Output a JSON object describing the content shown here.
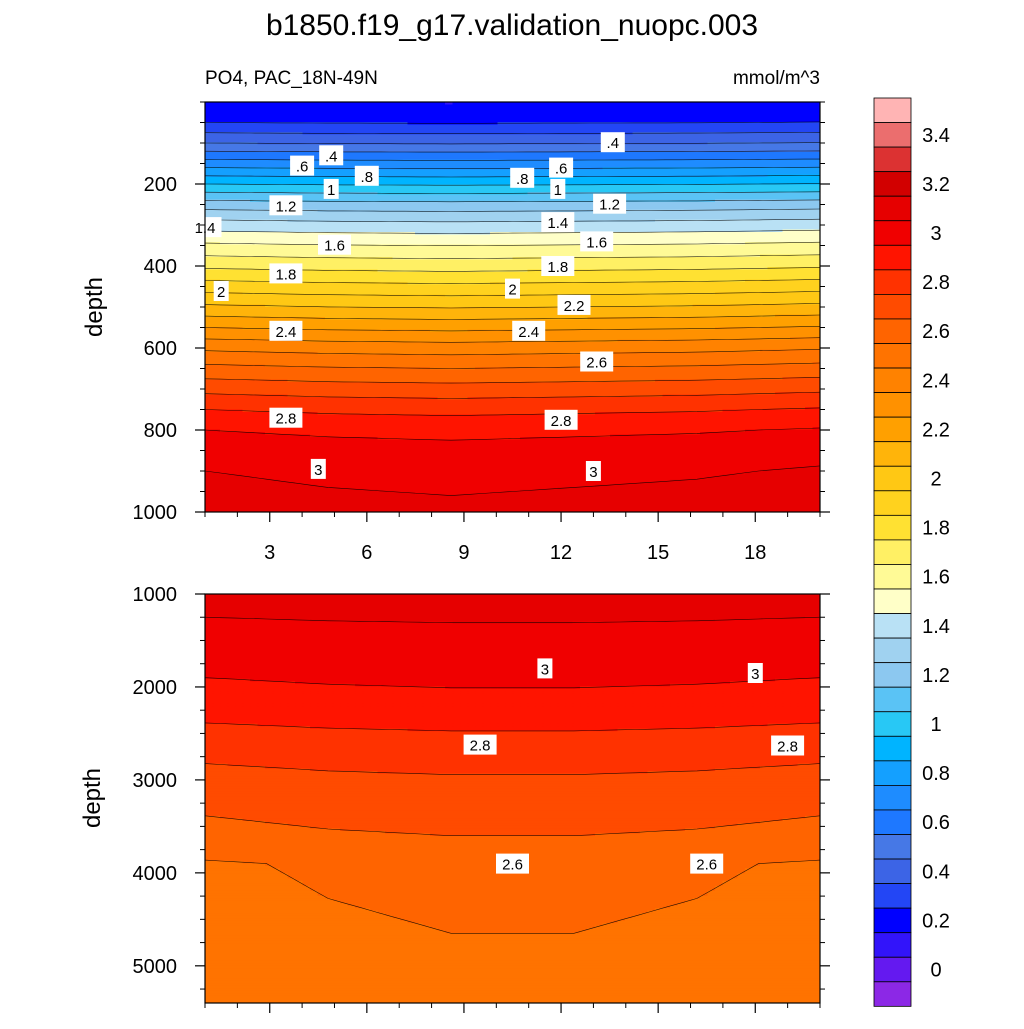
{
  "chart_data": {
    "type": "heatmap",
    "title": "b1850.f19_g17.validation_nuopc.003",
    "left_subtitle": "PO4, PAC_18N-49N",
    "right_subtitle": "mmol/m^3",
    "colorbar": {
      "levels": [
        -0.1,
        0,
        0.1,
        0.2,
        0.3,
        0.4,
        0.5,
        0.6,
        0.7,
        0.8,
        0.9,
        1.0,
        1.1,
        1.2,
        1.3,
        1.4,
        1.5,
        1.6,
        1.7,
        1.8,
        1.9,
        2.0,
        2.1,
        2.2,
        2.3,
        2.4,
        2.5,
        2.6,
        2.7,
        2.8,
        2.9,
        3.0,
        3.1,
        3.2,
        3.3,
        3.4,
        3.5,
        3.6
      ],
      "colors": [
        "#8c28e6",
        "#6419f0",
        "#3214fa",
        "#0000ff",
        "#2346f5",
        "#3c64e6",
        "#4678e6",
        "#1e78ff",
        "#1e8cff",
        "#14a0ff",
        "#00b4ff",
        "#28c8f5",
        "#5ac3f5",
        "#8cc8f0",
        "#a0d2f0",
        "#b9e1f5",
        "#ffffc8",
        "#fffa96",
        "#fff064",
        "#ffe132",
        "#ffd21e",
        "#ffc814",
        "#ffb40a",
        "#ffa000",
        "#ff9100",
        "#ff8200",
        "#ff7300",
        "#ff6400",
        "#ff4b00",
        "#ff3200",
        "#ff1400",
        "#f00000",
        "#e60000",
        "#d20000",
        "#dc3232",
        "#eb6e6e",
        "#ffb4b4"
      ],
      "tick_labels": [
        "0",
        "0.2",
        "0.4",
        "0.6",
        "0.8",
        "1",
        "1.2",
        "1.4",
        "1.6",
        "1.8",
        "2",
        "2.2",
        "2.4",
        "2.6",
        "2.8",
        "3",
        "3.2",
        "3.4"
      ]
    },
    "panels": [
      {
        "name": "upper",
        "ylabel": "depth",
        "ylim": [
          0,
          1000
        ],
        "y_ticks": [
          200,
          400,
          600,
          800,
          1000
        ],
        "y_tick_labels": [
          "200",
          "400",
          "600",
          "800",
          "1000"
        ],
        "x_range": [
          1,
          20
        ],
        "x_ticks": [
          3,
          6,
          9,
          12,
          15,
          18
        ],
        "x_tick_labels": [
          "3",
          "6",
          "9",
          "12",
          "15",
          "18"
        ],
        "profile": [
          [
            0,
            0.2
          ],
          [
            50,
            0.3
          ],
          [
            100,
            0.5
          ],
          [
            150,
            0.75
          ],
          [
            200,
            1.0
          ],
          [
            250,
            1.25
          ],
          [
            300,
            1.45
          ],
          [
            350,
            1.62
          ],
          [
            400,
            1.78
          ],
          [
            450,
            1.95
          ],
          [
            500,
            2.12
          ],
          [
            550,
            2.3
          ],
          [
            600,
            2.48
          ],
          [
            650,
            2.63
          ],
          [
            700,
            2.77
          ],
          [
            750,
            2.9
          ],
          [
            800,
            3.0
          ],
          [
            850,
            3.06
          ],
          [
            900,
            3.1
          ],
          [
            1000,
            3.15
          ]
        ],
        "tilt": [
          0,
          -0.02,
          -0.03,
          -0.02,
          -0.01,
          0.01
        ],
        "contour_labels": [
          {
            "text": ".4",
            "x": 4.9,
            "y": 130
          },
          {
            "text": ".4",
            "x": 13.6,
            "y": 98
          },
          {
            "text": ".6",
            "x": 4.0,
            "y": 155
          },
          {
            "text": ".6",
            "x": 12.0,
            "y": 160
          },
          {
            "text": ".8",
            "x": 6.0,
            "y": 180
          },
          {
            "text": ".8",
            "x": 10.8,
            "y": 185
          },
          {
            "text": "1",
            "x": 4.9,
            "y": 212
          },
          {
            "text": "1",
            "x": 11.9,
            "y": 212
          },
          {
            "text": "1.2",
            "x": 3.5,
            "y": 252
          },
          {
            "text": "1.2",
            "x": 13.5,
            "y": 248
          },
          {
            "text": "1.4",
            "x": 1.0,
            "y": 305
          },
          {
            "text": "1.4",
            "x": 11.9,
            "y": 293
          },
          {
            "text": "1.6",
            "x": 5.0,
            "y": 348
          },
          {
            "text": "1.6",
            "x": 13.1,
            "y": 340
          },
          {
            "text": "1.8",
            "x": 3.5,
            "y": 418
          },
          {
            "text": "1.8",
            "x": 11.9,
            "y": 400
          },
          {
            "text": "2",
            "x": 1.5,
            "y": 461
          },
          {
            "text": "2",
            "x": 10.5,
            "y": 455
          },
          {
            "text": "2.2",
            "x": 12.4,
            "y": 495
          },
          {
            "text": "2.4",
            "x": 3.5,
            "y": 558
          },
          {
            "text": "2.4",
            "x": 11.0,
            "y": 558
          },
          {
            "text": "2.6",
            "x": 13.1,
            "y": 633
          },
          {
            "text": "2.8",
            "x": 3.5,
            "y": 770
          },
          {
            "text": "2.8",
            "x": 12.0,
            "y": 775
          },
          {
            "text": "3",
            "x": 4.5,
            "y": 895
          },
          {
            "text": "3",
            "x": 13.0,
            "y": 900
          }
        ]
      },
      {
        "name": "lower",
        "ylabel": "depth",
        "ylim": [
          1000,
          5400
        ],
        "y_ticks": [
          1000,
          2000,
          3000,
          4000,
          5000
        ],
        "y_tick_labels": [
          "1000",
          "2000",
          "3000",
          "4000",
          "5000"
        ],
        "x_range": [
          1,
          20
        ],
        "x_ticks": [
          3,
          6,
          9,
          12,
          15,
          18
        ],
        "x_tick_labels": [],
        "profile": [
          [
            1000,
            3.15
          ],
          [
            1250,
            3.1
          ],
          [
            1700,
            3.03
          ],
          [
            2100,
            2.97
          ],
          [
            2550,
            2.86
          ],
          [
            3100,
            2.74
          ],
          [
            3600,
            2.67
          ],
          [
            3900,
            2.59
          ],
          [
            5400,
            2.55
          ]
        ],
        "tilt": [
          0,
          0.02,
          0.03,
          0.03,
          0.02,
          0.0
        ],
        "contour_labels": [
          {
            "text": "3",
            "x": 11.5,
            "y": 1800
          },
          {
            "text": "3",
            "x": 18.0,
            "y": 1850
          },
          {
            "text": "2.8",
            "x": 9.5,
            "y": 2620
          },
          {
            "text": "2.8",
            "x": 19.0,
            "y": 2630
          },
          {
            "text": "2.6",
            "x": 10.5,
            "y": 3900
          },
          {
            "text": "2.6",
            "x": 16.5,
            "y": 3900
          }
        ]
      }
    ]
  }
}
